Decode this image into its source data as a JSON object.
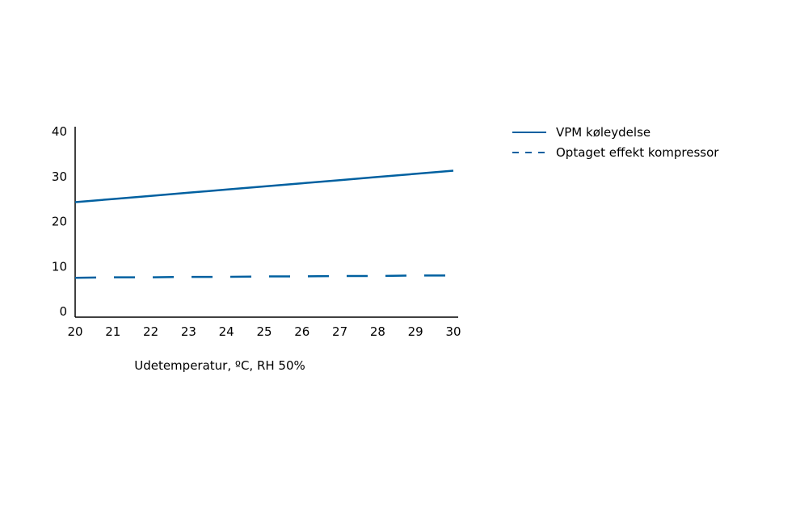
{
  "chart_data": {
    "type": "line",
    "title": "",
    "xlabel": "Udetemperatur, ºC, RH 50%",
    "ylabel": "",
    "x": [
      20,
      21,
      22,
      23,
      24,
      25,
      26,
      27,
      28,
      29,
      30
    ],
    "xlim": [
      20,
      30
    ],
    "ylim": [
      0,
      40
    ],
    "yticks": [
      0,
      10,
      20,
      30,
      40
    ],
    "grid": false,
    "legend_position": "top-right",
    "series": [
      {
        "name": "VPM køleydelse",
        "style": "solid",
        "color": "#0060a0",
        "values": [
          24.3,
          25.0,
          25.7,
          26.4,
          27.1,
          27.8,
          28.5,
          29.2,
          29.9,
          30.6,
          31.3
        ]
      },
      {
        "name": "Optaget effekt kompressor",
        "style": "dashed",
        "color": "#0060a0",
        "values": [
          7.5,
          7.6,
          7.6,
          7.7,
          7.7,
          7.8,
          7.8,
          7.9,
          7.9,
          8.0,
          8.0
        ]
      }
    ]
  }
}
